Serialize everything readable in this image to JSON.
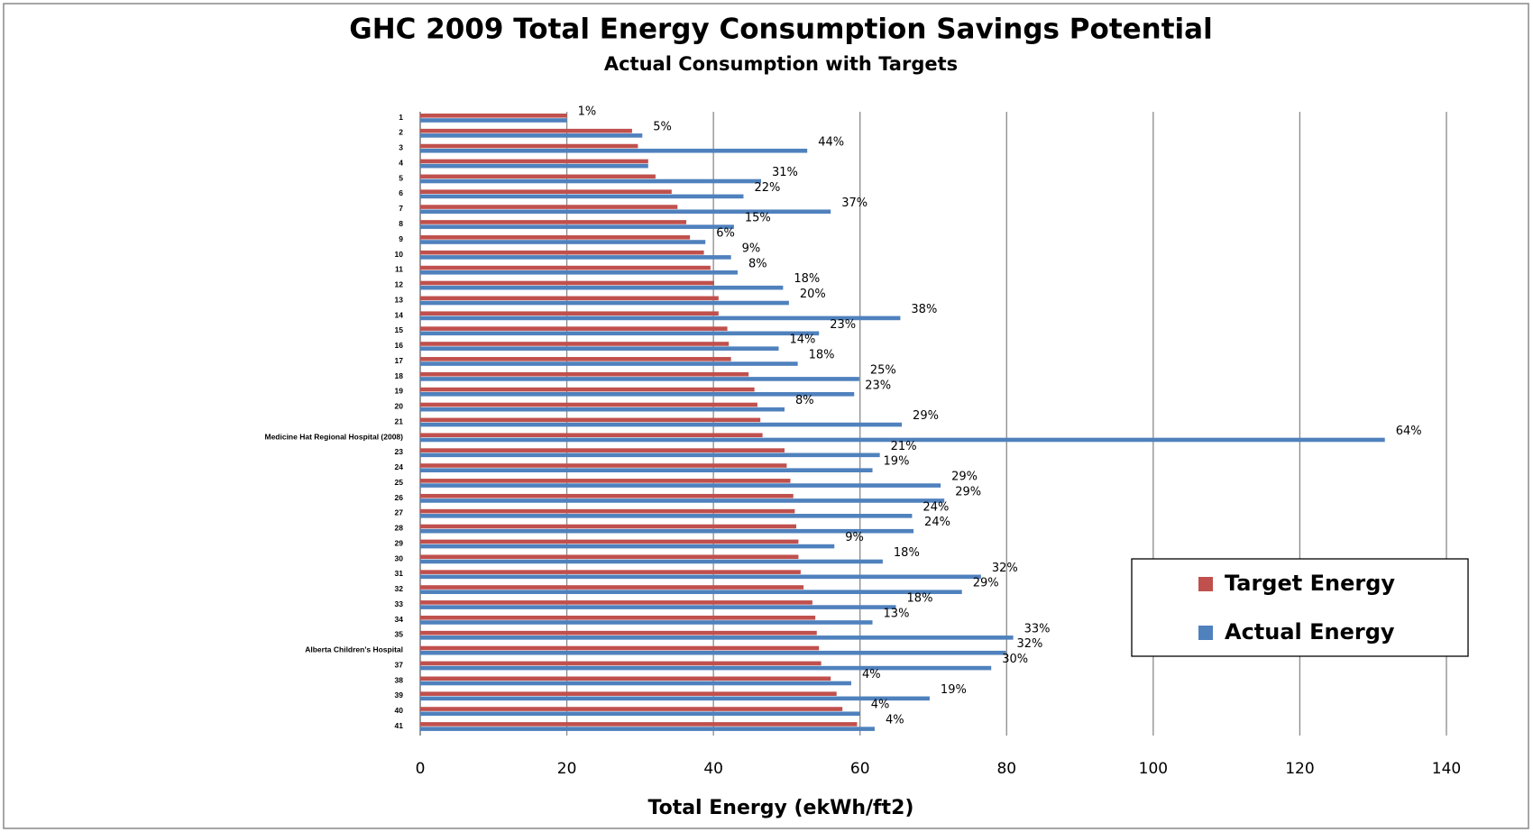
{
  "chart_data": {
    "type": "bar",
    "orientation": "horizontal",
    "title": "GHC 2009 Total Energy Consumption  Savings Potential",
    "subtitle": "Actual Consumption with Targets",
    "x_label": "Total Energy (ekWh/ft2)",
    "categories": [
      "1",
      "2",
      "3",
      "4",
      "5",
      "6",
      "7",
      "8",
      "9",
      "10",
      "11",
      "12",
      "13",
      "14",
      "15",
      "16",
      "17",
      "18",
      "19",
      "20",
      "21",
      "Medicine Hat Regional Hospital (2008)",
      "23",
      "24",
      "25",
      "26",
      "27",
      "28",
      "29",
      "30",
      "31",
      "32",
      "33",
      "34",
      "35",
      "Alberta Children's Hospital",
      "37",
      "38",
      "39",
      "40",
      "41"
    ],
    "series": [
      {
        "name": "Target Energy",
        "color": "#c0504d",
        "values": [
          20,
          28.9,
          29.7,
          31.1,
          32.1,
          34.3,
          35.1,
          36.3,
          36.8,
          38.7,
          39.6,
          40.1,
          40.7,
          40.7,
          41.9,
          42.1,
          42.4,
          44.8,
          45.6,
          46,
          46.4,
          46.7,
          49.7,
          50,
          50.5,
          50.9,
          51.1,
          51.3,
          51.6,
          51.6,
          51.9,
          52.3,
          53.5,
          53.9,
          54.1,
          54.4,
          54.7,
          56,
          56.8,
          57.6,
          59.6
        ]
      },
      {
        "name": "Actual Energy",
        "color": "#4f81bd",
        "values": [
          20,
          30.3,
          52.8,
          31.1,
          46.5,
          44.1,
          56,
          42.8,
          38.9,
          42.4,
          43.3,
          49.5,
          50.3,
          65.5,
          54.4,
          48.9,
          51.5,
          59.9,
          59.2,
          49.7,
          65.7,
          131.6,
          62.7,
          61.7,
          71,
          71.5,
          67.1,
          67.3,
          56.5,
          63.1,
          76.5,
          73.9,
          64.9,
          61.7,
          80.9,
          79.9,
          77.9,
          58.8,
          69.5,
          60,
          62
        ]
      }
    ],
    "savings_labels": [
      "1%",
      "5%",
      "44%",
      null,
      "31%",
      "22%",
      "37%",
      "15%",
      "6%",
      "9%",
      "8%",
      "18%",
      "20%",
      "38%",
      "23%",
      "14%",
      "18%",
      "25%",
      "23%",
      "8%",
      "29%",
      "64%",
      "21%",
      "19%",
      "29%",
      "29%",
      "24%",
      "24%",
      "9%",
      "18%",
      "32%",
      "29%",
      "18%",
      "13%",
      "33%",
      "32%",
      "30%",
      "4%",
      "19%",
      "4%",
      "4%"
    ],
    "xlim": [
      0,
      140
    ],
    "xticks": [
      0,
      20,
      40,
      60,
      80,
      100,
      120,
      140
    ],
    "grid": true,
    "legend": "right"
  }
}
